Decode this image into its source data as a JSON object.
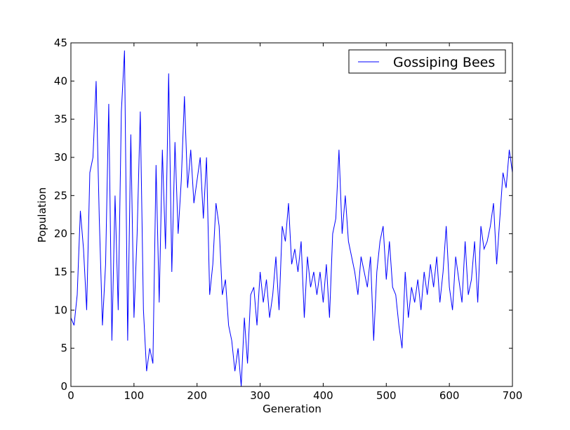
{
  "chart_data": {
    "type": "line",
    "xlabel": "Generation",
    "ylabel": "Population",
    "x": [
      0,
      5,
      10,
      15,
      20,
      25,
      30,
      35,
      40,
      45,
      50,
      55,
      60,
      65,
      70,
      75,
      80,
      85,
      90,
      95,
      100,
      105,
      110,
      115,
      120,
      125,
      130,
      135,
      140,
      145,
      150,
      155,
      160,
      165,
      170,
      175,
      180,
      185,
      190,
      195,
      200,
      205,
      210,
      215,
      220,
      225,
      230,
      235,
      240,
      245,
      250,
      255,
      260,
      265,
      270,
      275,
      280,
      285,
      290,
      295,
      300,
      305,
      310,
      315,
      320,
      325,
      330,
      335,
      340,
      345,
      350,
      355,
      360,
      365,
      370,
      375,
      380,
      385,
      390,
      395,
      400,
      405,
      410,
      415,
      420,
      425,
      430,
      435,
      440,
      445,
      450,
      455,
      460,
      465,
      470,
      475,
      480,
      485,
      490,
      495,
      500,
      505,
      510,
      515,
      520,
      525,
      530,
      535,
      540,
      545,
      550,
      555,
      560,
      565,
      570,
      575,
      580,
      585,
      590,
      595,
      600,
      605,
      610,
      615,
      620,
      625,
      630,
      635,
      640,
      645,
      650,
      655,
      660,
      665,
      670,
      675,
      680,
      685,
      690,
      695,
      700
    ],
    "series": [
      {
        "name": "Gossiping Bees",
        "color": "#0000ff",
        "values": [
          9,
          8,
          12,
          23,
          18,
          10,
          28,
          30,
          40,
          22,
          8,
          16,
          37,
          6,
          25,
          10,
          36,
          44,
          6,
          33,
          9,
          20,
          36,
          10,
          2,
          5,
          3,
          29,
          11,
          31,
          18,
          41,
          15,
          32,
          20,
          27,
          38,
          26,
          31,
          24,
          27,
          30,
          22,
          30,
          12,
          16,
          24,
          21,
          12,
          14,
          8,
          6,
          2,
          5,
          0,
          9,
          3,
          12,
          13,
          8,
          15,
          11,
          14,
          9,
          12,
          17,
          10,
          21,
          19,
          24,
          16,
          18,
          15,
          19,
          9,
          17,
          13,
          15,
          12,
          15,
          11,
          16,
          9,
          20,
          22,
          31,
          20,
          25,
          19,
          17,
          15,
          12,
          17,
          15,
          13,
          17,
          6,
          15,
          19,
          21,
          14,
          19,
          13,
          12,
          8,
          5,
          15,
          9,
          13,
          11,
          14,
          10,
          15,
          12,
          16,
          13,
          17,
          11,
          15,
          21,
          13,
          10,
          17,
          14,
          11,
          19,
          12,
          14,
          19,
          11,
          21,
          18,
          19,
          21,
          24,
          16,
          22,
          28,
          26,
          31,
          28
        ]
      }
    ],
    "xlim": [
      0,
      700
    ],
    "ylim": [
      0,
      45
    ],
    "xticks": [
      0,
      100,
      200,
      300,
      400,
      500,
      600,
      700
    ],
    "yticks": [
      0,
      5,
      10,
      15,
      20,
      25,
      30,
      35,
      40,
      45
    ],
    "legend": "upper right"
  }
}
